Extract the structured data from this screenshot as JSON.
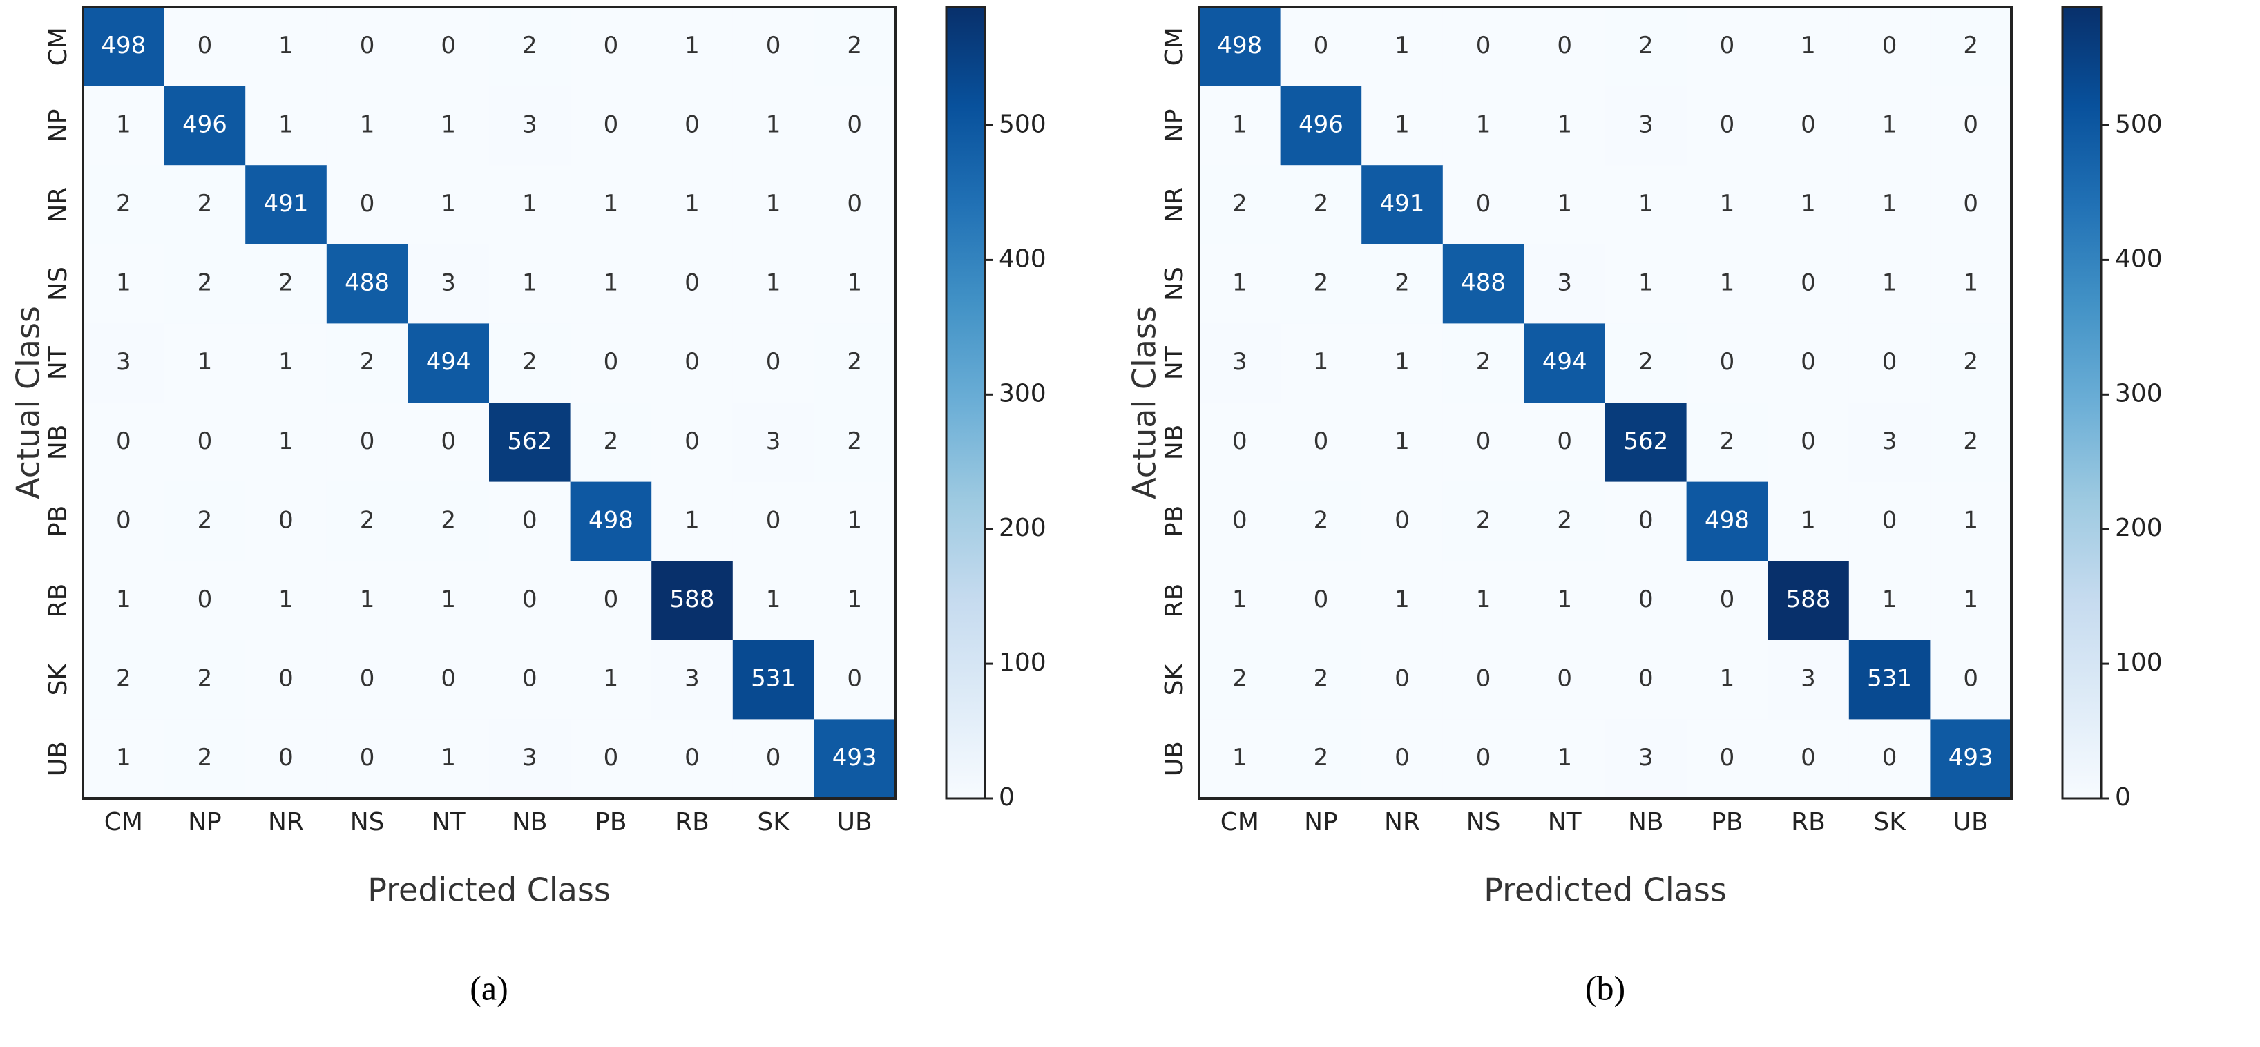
{
  "chart_data": [
    {
      "type": "heatmap",
      "caption": "(a)",
      "xlabel": "Predicted Class",
      "ylabel": "Actual Class",
      "x_categories": [
        "CM",
        "NP",
        "NR",
        "NS",
        "NT",
        "NB",
        "PB",
        "RB",
        "SK",
        "UB"
      ],
      "y_categories": [
        "CM",
        "NP",
        "NR",
        "NS",
        "NT",
        "NB",
        "PB",
        "RB",
        "SK",
        "UB"
      ],
      "values": [
        [
          498,
          0,
          1,
          0,
          0,
          2,
          0,
          1,
          0,
          2
        ],
        [
          1,
          496,
          1,
          1,
          1,
          3,
          0,
          0,
          1,
          0
        ],
        [
          2,
          2,
          491,
          0,
          1,
          1,
          1,
          1,
          1,
          0
        ],
        [
          1,
          2,
          2,
          488,
          3,
          1,
          1,
          0,
          1,
          1
        ],
        [
          3,
          1,
          1,
          2,
          494,
          2,
          0,
          0,
          0,
          2
        ],
        [
          0,
          0,
          1,
          0,
          0,
          562,
          2,
          0,
          3,
          2
        ],
        [
          0,
          2,
          0,
          2,
          2,
          0,
          498,
          1,
          0,
          1
        ],
        [
          1,
          0,
          1,
          1,
          1,
          0,
          0,
          588,
          1,
          1
        ],
        [
          2,
          2,
          0,
          0,
          0,
          0,
          1,
          3,
          531,
          0
        ],
        [
          1,
          2,
          0,
          0,
          1,
          3,
          0,
          0,
          0,
          493
        ]
      ],
      "colormap": "Blues",
      "colorbar_lim": [
        0,
        588
      ],
      "colorbar_ticks": [
        0,
        100,
        200,
        300,
        400,
        500
      ]
    },
    {
      "type": "heatmap",
      "caption": "(b)",
      "xlabel": "Predicted Class",
      "ylabel": "Actual Class",
      "x_categories": [
        "CM",
        "NP",
        "NR",
        "NS",
        "NT",
        "NB",
        "PB",
        "RB",
        "SK",
        "UB"
      ],
      "y_categories": [
        "CM",
        "NP",
        "NR",
        "NS",
        "NT",
        "NB",
        "PB",
        "RB",
        "SK",
        "UB"
      ],
      "values": [
        [
          498,
          0,
          1,
          0,
          0,
          2,
          0,
          1,
          0,
          2
        ],
        [
          1,
          496,
          1,
          1,
          1,
          3,
          0,
          0,
          1,
          0
        ],
        [
          2,
          2,
          491,
          0,
          1,
          1,
          1,
          1,
          1,
          0
        ],
        [
          1,
          2,
          2,
          488,
          3,
          1,
          1,
          0,
          1,
          1
        ],
        [
          3,
          1,
          1,
          2,
          494,
          2,
          0,
          0,
          0,
          2
        ],
        [
          0,
          0,
          1,
          0,
          0,
          562,
          2,
          0,
          3,
          2
        ],
        [
          0,
          2,
          0,
          2,
          2,
          0,
          498,
          1,
          0,
          1
        ],
        [
          1,
          0,
          1,
          1,
          1,
          0,
          0,
          588,
          1,
          1
        ],
        [
          2,
          2,
          0,
          0,
          0,
          0,
          1,
          3,
          531,
          0
        ],
        [
          1,
          2,
          0,
          0,
          1,
          3,
          0,
          0,
          0,
          493
        ]
      ],
      "colormap": "Blues",
      "colorbar_lim": [
        0,
        588
      ],
      "colorbar_ticks": [
        0,
        100,
        200,
        300,
        400,
        500
      ]
    }
  ]
}
